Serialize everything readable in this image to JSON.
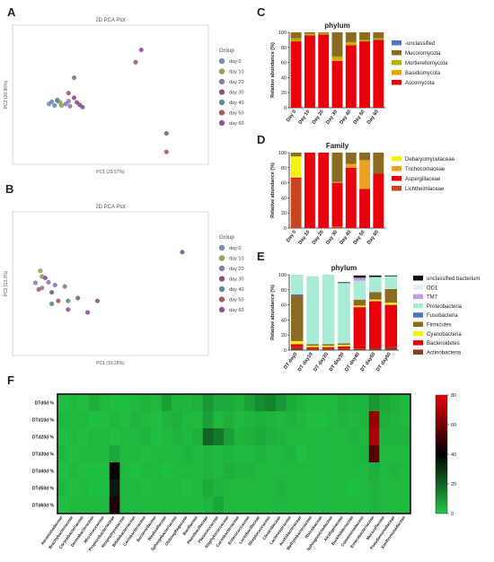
{
  "chart_data": [
    {
      "id": "A",
      "type": "scatter",
      "title": "2D PCA Plot",
      "xlabel": "PC1 (29.57%)",
      "ylabel": "PC2 (20.96%)",
      "xlim": [
        -30,
        40
      ],
      "ylim": [
        -20,
        25
      ],
      "legend": {
        "title": "Group",
        "position": "right"
      },
      "series": [
        {
          "name": "day 0",
          "color": "#6d8fbf",
          "points": [
            [
              -17,
              -0.5
            ],
            [
              -16,
              0.2
            ],
            [
              -15,
              -1
            ]
          ]
        },
        {
          "name": "day 10",
          "color": "#9aa64b",
          "points": [
            [
              -14,
              0.5
            ],
            [
              -13,
              0
            ],
            [
              -12.5,
              -1
            ]
          ]
        },
        {
          "name": "day 20",
          "color": "#8a7ab8",
          "points": [
            [
              -11,
              -0.5
            ],
            [
              -10,
              0.4
            ],
            [
              -9.5,
              -1.2
            ]
          ]
        },
        {
          "name": "day 30",
          "color": "#8b4a8f",
          "points": [
            [
              -8,
              1.5
            ],
            [
              -7,
              0
            ],
            [
              -6,
              -0.8
            ]
          ]
        },
        {
          "name": "day 40",
          "color": "#5b8a9a",
          "points": [
            [
              -8,
              8
            ],
            [
              -14,
              0.8
            ]
          ]
        },
        {
          "name": "day 50",
          "color": "#b25858",
          "points": [
            [
              -10,
              3
            ],
            [
              14,
              13
            ],
            [
              25,
              -16
            ]
          ]
        },
        {
          "name": "day 60",
          "color": "#8e4fa0",
          "points": [
            [
              16,
              17
            ],
            [
              25,
              -10
            ],
            [
              -5,
              -1.5
            ]
          ]
        }
      ]
    },
    {
      "id": "B",
      "type": "scatter",
      "title": "2D PCA Plot",
      "xlabel": "PC1 (19.28%)",
      "ylabel": "PC2 (13.3%)",
      "xlim": [
        -20,
        40
      ],
      "ylim": [
        -25,
        25
      ],
      "legend": {
        "title": "Group",
        "position": "right"
      },
      "series": [
        {
          "name": "day 0",
          "color": "#6d8fbf",
          "points": [
            [
              -13,
              0.3
            ],
            [
              -11,
              -1.5
            ]
          ]
        },
        {
          "name": "day 10",
          "color": "#9aa64b",
          "points": [
            [
              -11.5,
              4.5
            ],
            [
              -11,
              2.5
            ]
          ]
        },
        {
          "name": "day 20",
          "color": "#8a7ab8",
          "points": [
            [
              -9,
              0.5
            ],
            [
              -7,
              -0.5
            ],
            [
              -4,
              -1
            ]
          ]
        },
        {
          "name": "day 30",
          "color": "#8b4a8f",
          "points": [
            [
              -8,
              -3
            ],
            [
              -10,
              2
            ]
          ]
        },
        {
          "name": "day 40",
          "color": "#5b8a9a",
          "points": [
            [
              -8,
              -7
            ],
            [
              -3,
              -6
            ]
          ]
        },
        {
          "name": "day 50",
          "color": "#b25858",
          "points": [
            [
              -6,
              -6
            ],
            [
              -12,
              -2
            ]
          ]
        },
        {
          "name": "day 60",
          "color": "#8e4fa0",
          "points": [
            [
              0,
              -5
            ],
            [
              6,
              -6
            ],
            [
              3,
              -10
            ],
            [
              -3,
              -9
            ],
            [
              32,
              11
            ]
          ]
        }
      ]
    },
    {
      "id": "C",
      "type": "bar",
      "stacked": true,
      "title": "phylum",
      "ylabel": "Relative abundance (%)",
      "ylim": [
        0,
        100
      ],
      "yticks": [
        0,
        20,
        40,
        60,
        80,
        100
      ],
      "categories": [
        "Day 0",
        "Day 10",
        "Day 20",
        "Day 30",
        "Day 40",
        "Day 50",
        "Day 60"
      ],
      "legend": {
        "position": "right"
      },
      "series": [
        {
          "name": "Ascomycota",
          "color": "#e8000b",
          "values": [
            88,
            96,
            97,
            62,
            83,
            88,
            90
          ]
        },
        {
          "name": "Basidiomycota",
          "color": "#e8a200",
          "values": [
            0,
            0,
            0,
            3,
            2,
            0,
            0
          ]
        },
        {
          "name": "Mortierellomycota",
          "color": "#b4b000",
          "values": [
            4,
            2,
            2,
            3,
            2,
            2,
            2
          ]
        },
        {
          "name": "Mucoromycota",
          "color": "#8b6b22",
          "values": [
            8,
            2,
            1,
            32,
            13,
            10,
            8
          ]
        },
        {
          "name": "-unclassified",
          "color": "#4e74c4",
          "values": [
            0,
            0,
            0,
            0,
            0,
            0,
            0
          ]
        }
      ]
    },
    {
      "id": "D",
      "type": "bar",
      "stacked": true,
      "title": "Family",
      "ylabel": "Relative abundance (%)",
      "ylim": [
        0,
        100
      ],
      "yticks": [
        0,
        20,
        40,
        60,
        80,
        100
      ],
      "categories": [
        "Day 0",
        "Day 10",
        "Day 20",
        "Day 30",
        "Day 40",
        "Day 50",
        "Day 60"
      ],
      "legend": {
        "position": "right"
      },
      "series": [
        {
          "name": "Lichtheimiaceae",
          "color": "#c8431e",
          "values": [
            65,
            0,
            0,
            2,
            0,
            0,
            0
          ]
        },
        {
          "name": "Aspergillaceae",
          "color": "#e8000b",
          "values": [
            2,
            100,
            100,
            58,
            80,
            52,
            72
          ]
        },
        {
          "name": "Trichocomaceae",
          "color": "#f0a020",
          "values": [
            0,
            0,
            0,
            1,
            5,
            38,
            0
          ]
        },
        {
          "name": "Debaryomycetaceae",
          "color": "#f2f21a",
          "values": [
            28,
            0,
            0,
            0,
            0,
            0,
            0
          ]
        },
        {
          "name": "",
          "color": "#8b6b22",
          "values": [
            5,
            0,
            0,
            39,
            15,
            10,
            28
          ]
        }
      ]
    },
    {
      "id": "E",
      "type": "bar",
      "stacked": true,
      "title": "phylum",
      "ylabel": "Relative abundance (%)",
      "ylim": [
        0,
        100
      ],
      "yticks": [
        0,
        20,
        40,
        60,
        80,
        100
      ],
      "categories": [
        "DT day0",
        "DT day10",
        "DT day20",
        "DT day30",
        "DT day40",
        "DT day50",
        "DT day60"
      ],
      "legend": {
        "position": "right"
      },
      "series": [
        {
          "name": "Actinobacteria",
          "color": "#8b3a1e",
          "values": [
            4,
            2,
            2,
            2,
            2,
            3,
            4
          ]
        },
        {
          "name": "Bacteroidetes",
          "color": "#e8000b",
          "values": [
            4,
            2,
            2,
            3,
            55,
            62,
            56
          ]
        },
        {
          "name": "Cyanobacteria",
          "color": "#f2f21a",
          "values": [
            4,
            2,
            2,
            2,
            2,
            2,
            3
          ]
        },
        {
          "name": "Firmicutes",
          "color": "#8b6b22",
          "values": [
            60,
            2,
            2,
            2,
            8,
            10,
            18
          ]
        },
        {
          "name": "Fusobacteria",
          "color": "#4e74c4",
          "values": [
            2,
            0,
            0,
            0,
            0,
            0,
            0
          ]
        },
        {
          "name": "Proteobacteria",
          "color": "#a8ecd8",
          "values": [
            26,
            90,
            92,
            80,
            25,
            20,
            17
          ]
        },
        {
          "name": "TM7",
          "color": "#c0a0e0",
          "values": [
            0,
            0,
            0,
            0,
            4,
            0,
            0
          ]
        },
        {
          "name": "OD1",
          "color": "#dfeef8",
          "values": [
            0,
            0,
            0,
            0,
            0,
            0,
            0
          ]
        },
        {
          "name": "unclassified bacterium",
          "color": "#111111",
          "values": [
            0,
            0,
            0,
            1,
            3,
            2,
            1
          ]
        }
      ]
    },
    {
      "id": "F",
      "type": "heatmap",
      "rows": [
        "DTd0d %",
        "DTd10d %",
        "DTd20d %",
        "DTd30d %",
        "DTd40d %",
        "DTd50d %",
        "DTd60d %"
      ],
      "columns": [
        "Aeromonadaceae",
        "Brachybacteriaceae",
        "Corynebacteriaceae",
        "Dermabacteraceae",
        "Micrococcaceae",
        "Propionibacteriaceae",
        "Streptomycetaceae",
        "Bifidobacteriaceae",
        "Coriobacteriaceae",
        "Bacteroidaceae",
        "Weeksellaceae",
        "Sphingobacteriaceae",
        "Chitinophagaceae",
        "Bacillaceae",
        "Paenibacillaceae",
        "Planococcaceae",
        "Staphylococcaceae",
        "Carnobacteriaceae",
        "Enterococcaceae",
        "Lactobacillaceae",
        "Streptococcaceae",
        "Clostridiaceae",
        "Lachnospiraceae",
        "Acetobacteraceae",
        "Methylobacteriaceae",
        "Rhizobiaceae",
        "Sphingomonadaceae",
        "Alcaligenaceae",
        "Burkholderiaceae",
        "Comamonadaceae",
        "Enterobacteriaceae",
        "Moraxellaceae",
        "Pseudomonadaceae",
        "Xanthomonadaceae"
      ],
      "colorbar": {
        "min": 0,
        "max": 80,
        "ticks": [
          0,
          20,
          40,
          60,
          80
        ],
        "colors": [
          "#22c845",
          "#000000",
          "#e8000b"
        ]
      },
      "values": [
        [
          2,
          3,
          2,
          5,
          3,
          2,
          2,
          3,
          4,
          3,
          8,
          4,
          4,
          5,
          10,
          6,
          6,
          5,
          8,
          12,
          14,
          10,
          6,
          4,
          3,
          3,
          3,
          5,
          4,
          4,
          10,
          6,
          5,
          3
        ],
        [
          3,
          3,
          3,
          2,
          2,
          3,
          2,
          4,
          3,
          2,
          4,
          5,
          3,
          3,
          8,
          3,
          5,
          3,
          4,
          5,
          4,
          3,
          4,
          3,
          2,
          2,
          3,
          4,
          3,
          4,
          66,
          5,
          4,
          3
        ],
        [
          2,
          3,
          2,
          3,
          3,
          2,
          3,
          3,
          4,
          2,
          3,
          4,
          3,
          5,
          20,
          16,
          8,
          4,
          5,
          6,
          5,
          4,
          3,
          3,
          3,
          3,
          3,
          3,
          4,
          3,
          70,
          4,
          4,
          4
        ],
        [
          3,
          2,
          3,
          3,
          3,
          7,
          3,
          3,
          2,
          3,
          3,
          3,
          4,
          3,
          4,
          3,
          4,
          3,
          3,
          4,
          3,
          3,
          4,
          2,
          3,
          3,
          3,
          3,
          3,
          4,
          55,
          3,
          3,
          3
        ],
        [
          2,
          3,
          2,
          2,
          2,
          40,
          3,
          2,
          3,
          3,
          2,
          3,
          3,
          3,
          4,
          3,
          5,
          4,
          4,
          3,
          3,
          3,
          3,
          3,
          3,
          3,
          3,
          3,
          3,
          3,
          5,
          3,
          4,
          3
        ],
        [
          3,
          2,
          3,
          2,
          2,
          35,
          3,
          3,
          2,
          3,
          3,
          3,
          2,
          3,
          6,
          4,
          3,
          3,
          3,
          3,
          3,
          4,
          3,
          3,
          3,
          3,
          3,
          3,
          2,
          3,
          4,
          3,
          3,
          3
        ],
        [
          2,
          3,
          3,
          3,
          3,
          45,
          3,
          3,
          3,
          3,
          3,
          3,
          3,
          3,
          4,
          7,
          3,
          3,
          3,
          3,
          3,
          3,
          3,
          3,
          3,
          3,
          3,
          3,
          3,
          3,
          4,
          3,
          3,
          3
        ]
      ]
    }
  ]
}
